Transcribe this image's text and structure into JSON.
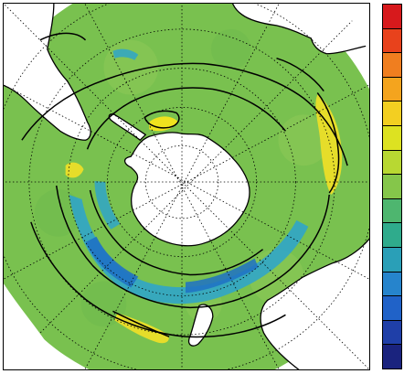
{
  "map": {
    "projection": "south-polar-stereographic",
    "ocean_field_base_color": "#79c14f",
    "land_color": "#ffffff",
    "coast_color": "#000000",
    "contour_color": "#000000",
    "graticule_color": "#000000",
    "anomaly_colors": {
      "low_strong": "#1f71c4",
      "low": "#2ba3cf",
      "neutral_low": "#3fae86",
      "neutral": "#79c14f",
      "high": "#cfd63c",
      "high_strong": "#f0e21e"
    },
    "regions": [
      "antarctica",
      "south-america",
      "africa",
      "australia",
      "new-zealand"
    ]
  },
  "colorbar": {
    "orientation": "vertical",
    "label": "",
    "colors": [
      "#d7191c",
      "#e8421c",
      "#f07e1f",
      "#f4a41e",
      "#f3cf21",
      "#dde221",
      "#b8d832",
      "#85c64a",
      "#4eb66f",
      "#2fab8c",
      "#2a9fb7",
      "#2684cc",
      "#2062c8",
      "#1f3fa8",
      "#1a237e"
    ]
  }
}
